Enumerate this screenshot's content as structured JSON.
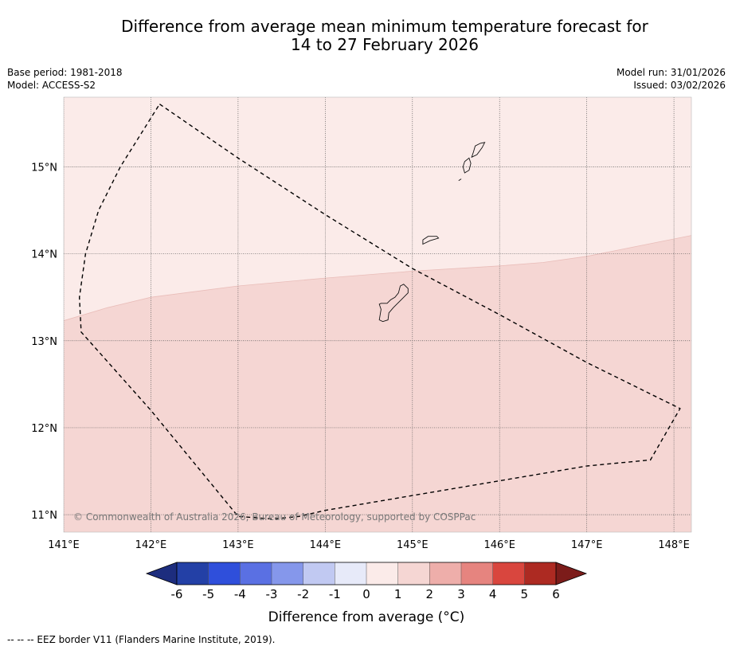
{
  "title": {
    "line1": "Difference from average mean minimum temperature forecast for",
    "line2": "14 to 27 February 2026"
  },
  "meta": {
    "base_period": "Base period: 1981-2018",
    "model": "Model: ACCESS-S2",
    "model_run": "Model run: 31/01/2026",
    "issued": "Issued: 03/02/2026"
  },
  "map": {
    "lon_range": [
      141.0,
      148.2
    ],
    "lat_range": [
      10.8,
      15.8
    ],
    "lon_ticks": [
      141,
      142,
      143,
      144,
      145,
      146,
      147,
      148
    ],
    "lon_tick_labels": [
      "141°E",
      "142°E",
      "143°E",
      "144°E",
      "145°E",
      "146°E",
      "147°E",
      "148°E"
    ],
    "lat_ticks": [
      11,
      12,
      13,
      14,
      15
    ],
    "lat_tick_labels": [
      "11°N",
      "12°N",
      "13°N",
      "14°N",
      "15°N"
    ],
    "regions": [
      {
        "name": "anomaly 0 to 1",
        "color": "#fbebe9"
      },
      {
        "name": "anomaly 1 to 2",
        "color": "#f5d6d3"
      }
    ],
    "anomaly_boundary": [
      [
        141.0,
        13.23
      ],
      [
        141.5,
        13.38
      ],
      [
        142.0,
        13.5
      ],
      [
        143.0,
        13.63
      ],
      [
        144.0,
        13.72
      ],
      [
        145.0,
        13.8
      ],
      [
        146.0,
        13.86
      ],
      [
        146.5,
        13.9
      ],
      [
        147.0,
        13.97
      ],
      [
        147.5,
        14.07
      ],
      [
        148.2,
        14.21
      ]
    ],
    "eez_border": [
      [
        142.1,
        15.72
      ],
      [
        143.0,
        15.1
      ],
      [
        144.0,
        14.45
      ],
      [
        145.0,
        13.83
      ],
      [
        146.0,
        13.3
      ],
      [
        147.0,
        12.75
      ],
      [
        148.07,
        12.22
      ],
      [
        147.73,
        11.63
      ],
      [
        147.0,
        11.56
      ],
      [
        146.0,
        11.39
      ],
      [
        145.0,
        11.22
      ],
      [
        144.0,
        11.05
      ],
      [
        143.7,
        10.98
      ],
      [
        143.4,
        10.95
      ],
      [
        143.0,
        10.98
      ],
      [
        142.0,
        12.2
      ],
      [
        141.2,
        13.1
      ],
      [
        141.18,
        13.5
      ],
      [
        141.25,
        14.0
      ],
      [
        141.4,
        14.5
      ],
      [
        141.65,
        15.0
      ],
      [
        142.1,
        15.72
      ]
    ],
    "islands": [
      [
        [
          144.62,
          13.24
        ],
        [
          144.66,
          13.22
        ],
        [
          144.72,
          13.24
        ],
        [
          144.73,
          13.32
        ],
        [
          144.78,
          13.38
        ],
        [
          144.87,
          13.47
        ],
        [
          144.95,
          13.55
        ],
        [
          144.95,
          13.6
        ],
        [
          144.9,
          13.65
        ],
        [
          144.86,
          13.63
        ],
        [
          144.84,
          13.55
        ],
        [
          144.8,
          13.5
        ],
        [
          144.75,
          13.47
        ],
        [
          144.71,
          13.43
        ],
        [
          144.64,
          13.43
        ],
        [
          144.62,
          13.42
        ],
        [
          144.64,
          13.36
        ]
      ],
      [
        [
          145.12,
          14.11
        ],
        [
          145.2,
          14.15
        ],
        [
          145.3,
          14.18
        ],
        [
          145.28,
          14.2
        ],
        [
          145.18,
          14.2
        ],
        [
          145.12,
          14.16
        ]
      ],
      [
        [
          145.6,
          14.93
        ],
        [
          145.65,
          14.96
        ],
        [
          145.67,
          15.04
        ],
        [
          145.65,
          15.1
        ],
        [
          145.6,
          15.06
        ],
        [
          145.58,
          15.0
        ]
      ],
      [
        [
          145.68,
          15.11
        ],
        [
          145.74,
          15.14
        ],
        [
          145.8,
          15.22
        ],
        [
          145.83,
          15.28
        ],
        [
          145.78,
          15.27
        ],
        [
          145.72,
          15.24
        ],
        [
          145.7,
          15.17
        ]
      ],
      [
        [
          145.53,
          14.84
        ],
        [
          145.56,
          14.86
        ]
      ]
    ],
    "copyright": "© Commonwealth of Australia 2026, Bureau of Meteorology, supported by COSPPac"
  },
  "legend": {
    "label": "Difference from average (°C)",
    "tick_labels": [
      "-6",
      "-5",
      "-4",
      "-3",
      "-2",
      "-1",
      "0",
      "1",
      "2",
      "3",
      "4",
      "5",
      "6"
    ],
    "colors": [
      "#2340a6",
      "#2f4fdb",
      "#5a70e3",
      "#8597eb",
      "#c1c9f2",
      "#e7eaf9",
      "#fbebe9",
      "#f5d6d3",
      "#eeaeaa",
      "#e6847f",
      "#d9463e",
      "#ad2a22"
    ],
    "under_color": "#1d2d7e",
    "over_color": "#7c1c1a"
  },
  "footer": "-- -- -- EEZ border V11 (Flanders Marine Institute, 2019)."
}
